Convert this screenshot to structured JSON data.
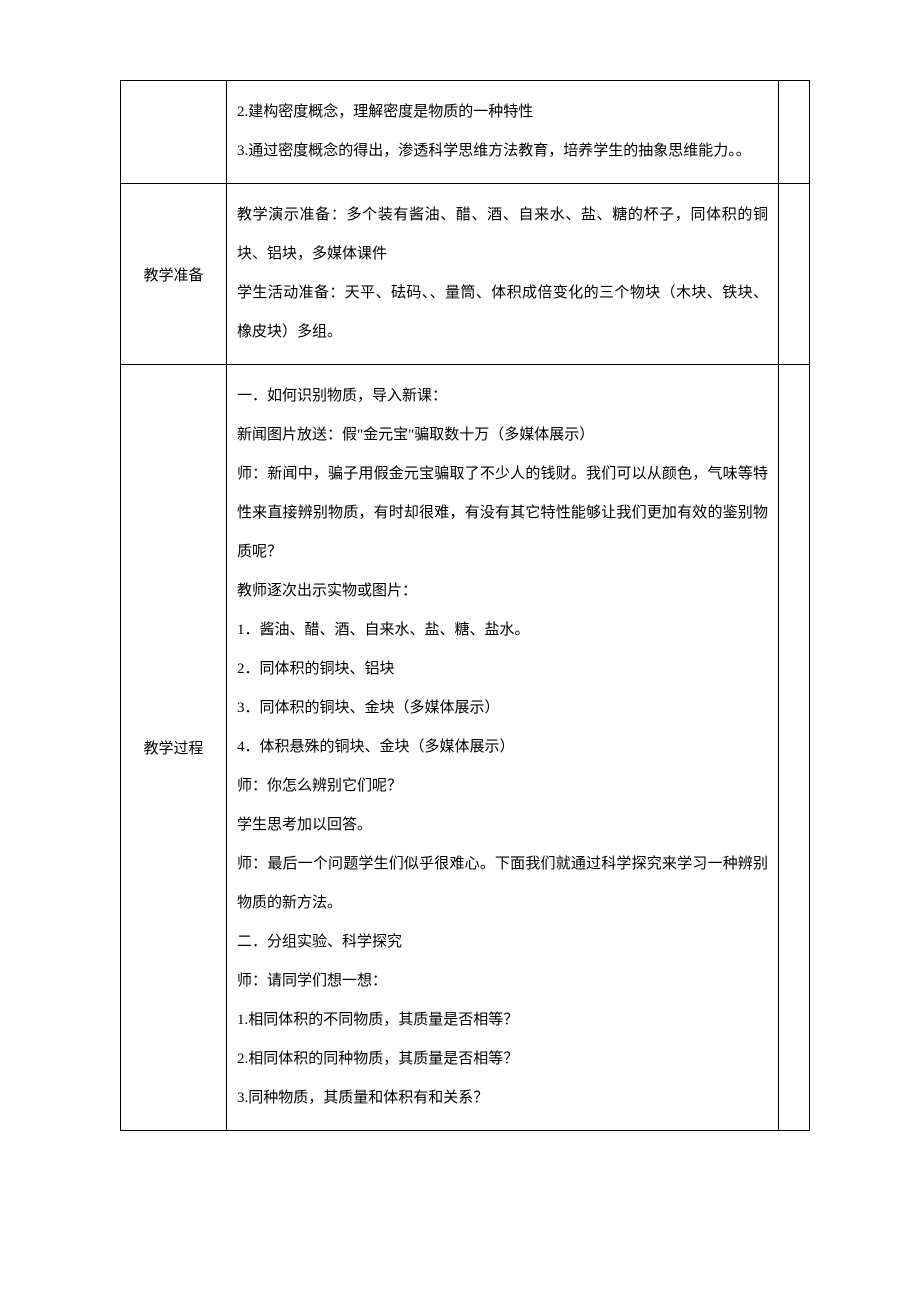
{
  "rows": [
    {
      "label": "",
      "content": [
        "2.建构密度概念，理解密度是物质的一种特性",
        "3.通过密度概念的得出，渗透科学思维方法教育，培养学生的抽象思维能力。。"
      ]
    },
    {
      "label": "教学准备",
      "content": [
        "教学演示准备：多个装有酱油、醋、酒、自来水、盐、糖的杯子，同体积的铜块、铝块，多媒体课件",
        "学生活动准备：天平、砝码、、量筒、体积成倍变化的三个物块（木块、铁块、橡皮块）多组。"
      ]
    },
    {
      "label": "教学过程",
      "content": [
        "一．如何识别物质，导入新课：",
        "新闻图片放送：假\"金元宝\"骗取数十万（多媒体展示）",
        "师：新闻中，骗子用假金元宝骗取了不少人的钱财。我们可以从颜色，气味等特性来直接辨别物质，有时却很难，有没有其它特性能够让我们更加有效的鉴别物质呢？",
        "教师逐次出示实物或图片：",
        "1．酱油、醋、酒、自来水、盐、糖、盐水。",
        "2．同体积的铜块、铝块",
        "3．同体积的铜块、金块（多媒体展示）",
        "4．体积悬殊的铜块、金块（多媒体展示）",
        "师：你怎么辨别它们呢？",
        "学生思考加以回答。",
        "师：最后一个问题学生们似乎很难心。下面我们就通过科学探究来学习一种辨别物质的新方法。",
        "二．分组实验、科学探究",
        "师：请同学们想一想：",
        "1.相同体积的不同物质，其质量是否相等？",
        "2.相同体积的同种物质，其质量是否相等？",
        "3.同种物质，其质量和体积有和关系？"
      ]
    }
  ]
}
